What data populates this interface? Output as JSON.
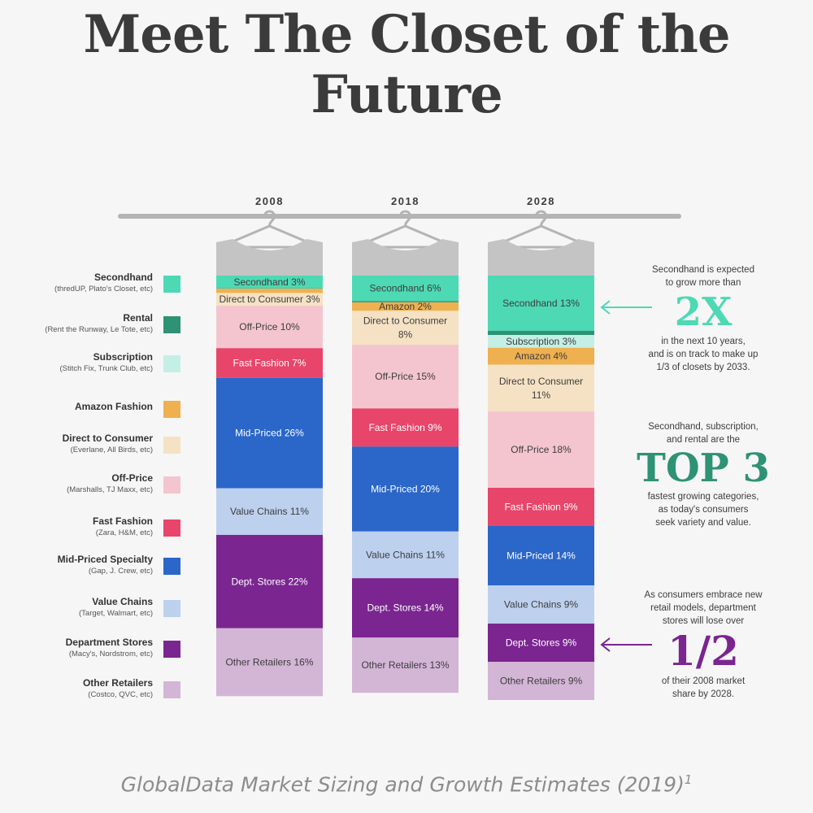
{
  "title": {
    "line1": "Meet The Closet of the",
    "line2": "Future"
  },
  "legend": [
    {
      "name": "Secondhand",
      "sub": "(thredUP, Plato's Closet, etc)",
      "color": "#4dd9b4"
    },
    {
      "name": "Rental",
      "sub": "(Rent the Runway, Le Tote, etc)",
      "color": "#2e9274"
    },
    {
      "name": "Subscription",
      "sub": "(Stitch Fix, Trunk Club, etc)",
      "color": "#c4efe4"
    },
    {
      "name": "Amazon Fashion",
      "sub": "",
      "color": "#efb04f"
    },
    {
      "name": "Direct to Consumer",
      "sub": "(Everlane, All Birds, etc)",
      "color": "#f5e2c4"
    },
    {
      "name": "Off-Price",
      "sub": "(Marshalls, TJ Maxx, etc)",
      "color": "#f4c5cf"
    },
    {
      "name": "Fast Fashion",
      "sub": "(Zara, H&M, etc)",
      "color": "#e8456a"
    },
    {
      "name": "Mid-Priced Specialty",
      "sub": "(Gap, J. Crew, etc)",
      "color": "#2b66c9"
    },
    {
      "name": "Value Chains",
      "sub": "(Target, Walmart, etc)",
      "color": "#bdd0ee"
    },
    {
      "name": "Department Stores",
      "sub": "(Macy's, Nordstrom, etc)",
      "color": "#7a2590"
    },
    {
      "name": "Other Retailers",
      "sub": "(Costco, QVC, etc)",
      "color": "#d3b5d6"
    }
  ],
  "chart_data": {
    "type": "bar",
    "stacked": true,
    "categories": [
      "2008",
      "2018",
      "2028"
    ],
    "series": [
      {
        "name": "Secondhand",
        "values": [
          3,
          6,
          13
        ],
        "labels": [
          "Secondhand 3%",
          "Secondhand 6%",
          "Secondhand 13%"
        ],
        "color": "#4dd9b4"
      },
      {
        "name": "Rental",
        "values": [
          0.1,
          0.3,
          1
        ],
        "labels": [
          "",
          "",
          ""
        ],
        "color": "#2e9274"
      },
      {
        "name": "Subscription",
        "values": [
          0,
          0,
          3
        ],
        "labels": [
          "",
          "",
          "Subscription 3%"
        ],
        "color": "#c4efe4"
      },
      {
        "name": "Amazon Fashion",
        "values": [
          1,
          2,
          4
        ],
        "labels": [
          "",
          "Amazon 2%",
          "Amazon 4%"
        ],
        "color": "#efb04f"
      },
      {
        "name": "Direct to Consumer",
        "values": [
          3,
          8,
          11
        ],
        "labels": [
          "Direct to Consumer 3%",
          "Direct to Consumer|8%",
          "Direct to Consumer|11%"
        ],
        "color": "#f5e2c4"
      },
      {
        "name": "Off-Price",
        "values": [
          10,
          15,
          18
        ],
        "labels": [
          "Off-Price 10%",
          "Off-Price 15%",
          "Off-Price 18%"
        ],
        "color": "#f4c5cf"
      },
      {
        "name": "Fast Fashion",
        "values": [
          7,
          9,
          9
        ],
        "labels": [
          "Fast Fashion 7%",
          "Fast Fashion 9%",
          "Fast Fashion 9%"
        ],
        "color": "#e8456a"
      },
      {
        "name": "Mid-Priced Specialty",
        "values": [
          26,
          20,
          14
        ],
        "labels": [
          "Mid-Priced 26%",
          "Mid-Priced 20%",
          "Mid-Priced 14%"
        ],
        "color": "#2b66c9"
      },
      {
        "name": "Value Chains",
        "values": [
          11,
          11,
          9
        ],
        "labels": [
          "Value Chains 11%",
          "Value Chains 11%",
          "Value Chains 9%"
        ],
        "color": "#bdd0ee"
      },
      {
        "name": "Department Stores",
        "values": [
          22,
          14,
          9
        ],
        "labels": [
          "Dept. Stores 22%",
          "Dept. Stores 14%",
          "Dept. Stores 9%"
        ],
        "color": "#7a2590"
      },
      {
        "name": "Other Retailers",
        "values": [
          16,
          13,
          9
        ],
        "labels": [
          "Other Retailers 16%",
          "Other Retailers 13%",
          "Other Retailers 9%"
        ],
        "color": "#d3b5d6"
      }
    ],
    "ylim": [
      0,
      100
    ]
  },
  "annotations": [
    {
      "pre": [
        "Secondhand is expected",
        "to grow more than"
      ],
      "big": "2X",
      "post": [
        "in the next 10 years,",
        "and is on track to make up",
        "1/3 of closets by 2033."
      ],
      "color": "#4dd9b4"
    },
    {
      "pre": [
        "Secondhand, subscription,",
        "and rental are the"
      ],
      "big": "TOP 3",
      "post": [
        "fastest growing categories,",
        "as today's consumers",
        "seek variety and value."
      ],
      "color": "#2e9274"
    },
    {
      "pre": [
        "As consumers embrace new",
        "retail models, department",
        "stores will lose over"
      ],
      "big": "1/2",
      "post": [
        "of their 2008 market",
        "share by 2028."
      ],
      "color": "#7a2590"
    }
  ],
  "source": {
    "text": "GlobalData Market Sizing and Growth Estimates (2019)",
    "sup": "1"
  }
}
